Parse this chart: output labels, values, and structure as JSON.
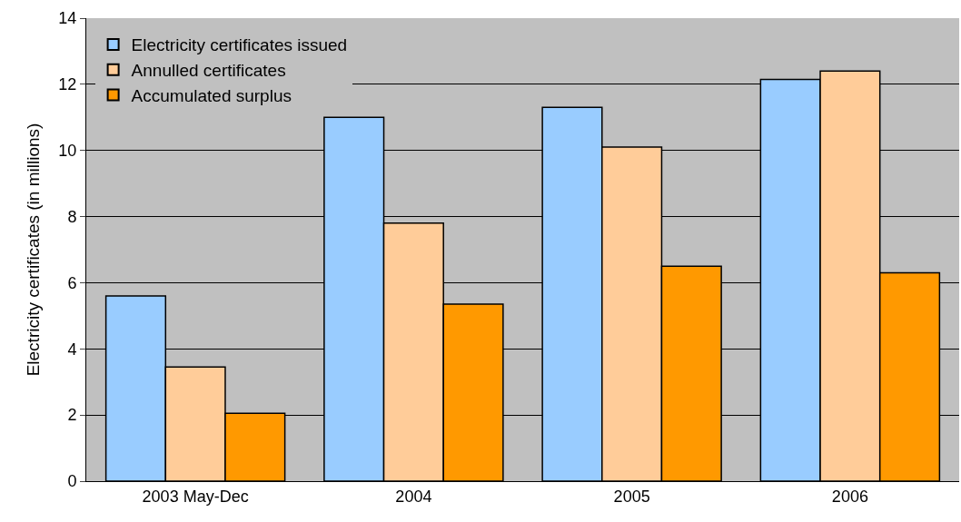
{
  "chart_data": {
    "type": "bar",
    "ylabel": "Electricity certificates (in millions)",
    "categories": [
      "2003 May-Dec",
      "2004",
      "2005",
      "2006"
    ],
    "series": [
      {
        "name": "Electricity certificates issued",
        "color": "#99ccff",
        "values": [
          5.6,
          11.0,
          11.3,
          12.15
        ]
      },
      {
        "name": "Annulled certificates",
        "color": "#ffcc99",
        "values": [
          3.45,
          7.8,
          10.1,
          12.4
        ]
      },
      {
        "name": "Accumulated surplus",
        "color": "#ff9900",
        "values": [
          2.05,
          5.35,
          6.5,
          6.3
        ]
      }
    ],
    "ylim": [
      0,
      14
    ],
    "yticks": [
      0,
      2,
      4,
      6,
      8,
      10,
      12,
      14
    ],
    "grid": "y",
    "legend": "top left"
  }
}
